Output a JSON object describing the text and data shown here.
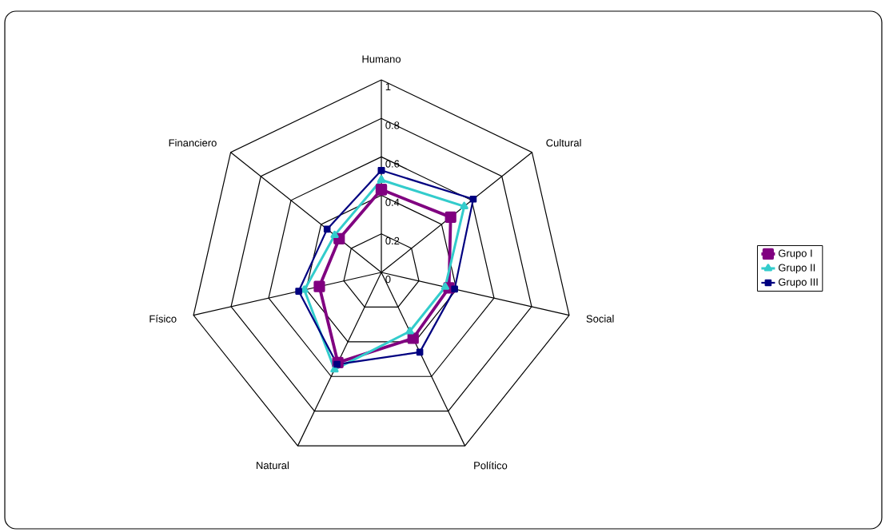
{
  "chart_data": {
    "type": "radar",
    "categories": [
      "Humano",
      "Cultural",
      "Social",
      "Político",
      "Natural",
      "Físico",
      "Financiero"
    ],
    "ylim": [
      0,
      1
    ],
    "yticks": [
      0,
      0.2,
      0.4,
      0.6,
      0.8,
      1
    ],
    "grid": true,
    "legend": "right",
    "series": [
      {
        "name": "Grupo I",
        "color": "#800080",
        "marker": "square",
        "values": [
          0.43,
          0.46,
          0.36,
          0.38,
          0.52,
          0.33,
          0.28
        ]
      },
      {
        "name": "Grupo II",
        "color": "#33cccc",
        "marker": "triangle",
        "values": [
          0.48,
          0.55,
          0.34,
          0.34,
          0.56,
          0.41,
          0.31
        ]
      },
      {
        "name": "Grupo III",
        "color": "#000080",
        "marker": "square",
        "values": [
          0.53,
          0.61,
          0.39,
          0.46,
          0.53,
          0.44,
          0.36
        ]
      }
    ]
  }
}
